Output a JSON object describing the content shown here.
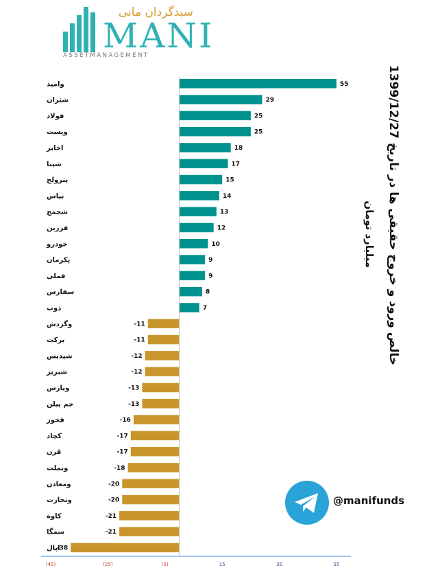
{
  "logo": {
    "persian_text": "سبدگردان مانی",
    "wordmark": "MANI",
    "subtitle": "ASSETMANAGEMENT",
    "icon": "bar-columns-logo-icon"
  },
  "title": {
    "line1": "خالص ورود و خروج حقیقی ها در تاریخ 1399/12/27",
    "line2": "میلیارد تومان"
  },
  "telegram": {
    "icon": "telegram-icon",
    "handle": "@manifunds"
  },
  "colors": {
    "positive": "#00928f",
    "negative": "#c9962b",
    "axis": "#4a90d9",
    "tick_negative": "#c0392b",
    "tick_positive": "#3a4a8a",
    "telegram": "#2aa3d8"
  },
  "chart_data": {
    "type": "bar",
    "orientation": "horizontal",
    "categories": [
      "وامید",
      "شتران",
      "فولاد",
      "وپست",
      "اخابر",
      "شپنا",
      "پترولح",
      "بپاس",
      "شجمج",
      "فزرین",
      "خودرو",
      "پکرمان",
      "فملی",
      "سفارس",
      "ذوب",
      "وگردش",
      "برکت",
      "شپدیس",
      "شبریز",
      "وپارس",
      "جم پیلن",
      "فخوز",
      "کچاد",
      "قرن",
      "وبملت",
      "ومعادن",
      "وتجارت",
      "کاوه",
      "سمگا",
      "اپال"
    ],
    "values": [
      55,
      29,
      25,
      25,
      18,
      17,
      15,
      14,
      13,
      12,
      10,
      9,
      9,
      8,
      7,
      -11,
      -11,
      -12,
      -12,
      -13,
      -13,
      -16,
      -17,
      -17,
      -18,
      -20,
      -20,
      -21,
      -21,
      -38
    ],
    "value_labels": [
      "55",
      "29",
      "25",
      "25",
      "18",
      "17",
      "15",
      "14",
      "13",
      "12",
      "10",
      "9",
      "9",
      "8",
      "7",
      "-11",
      "-11",
      "-12",
      "-12",
      "-13",
      "-13",
      "-16",
      "-17",
      "-17",
      "-18",
      "-20",
      "-20",
      "-21",
      "-21",
      "-38"
    ],
    "xlim": [
      -45,
      55
    ],
    "xticks": [
      -45,
      -25,
      -5,
      15,
      35,
      55
    ],
    "xtick_labels": [
      "(45)",
      "(25)",
      "(5)",
      "15",
      "35",
      "55"
    ],
    "grid": false,
    "legend": "none"
  }
}
